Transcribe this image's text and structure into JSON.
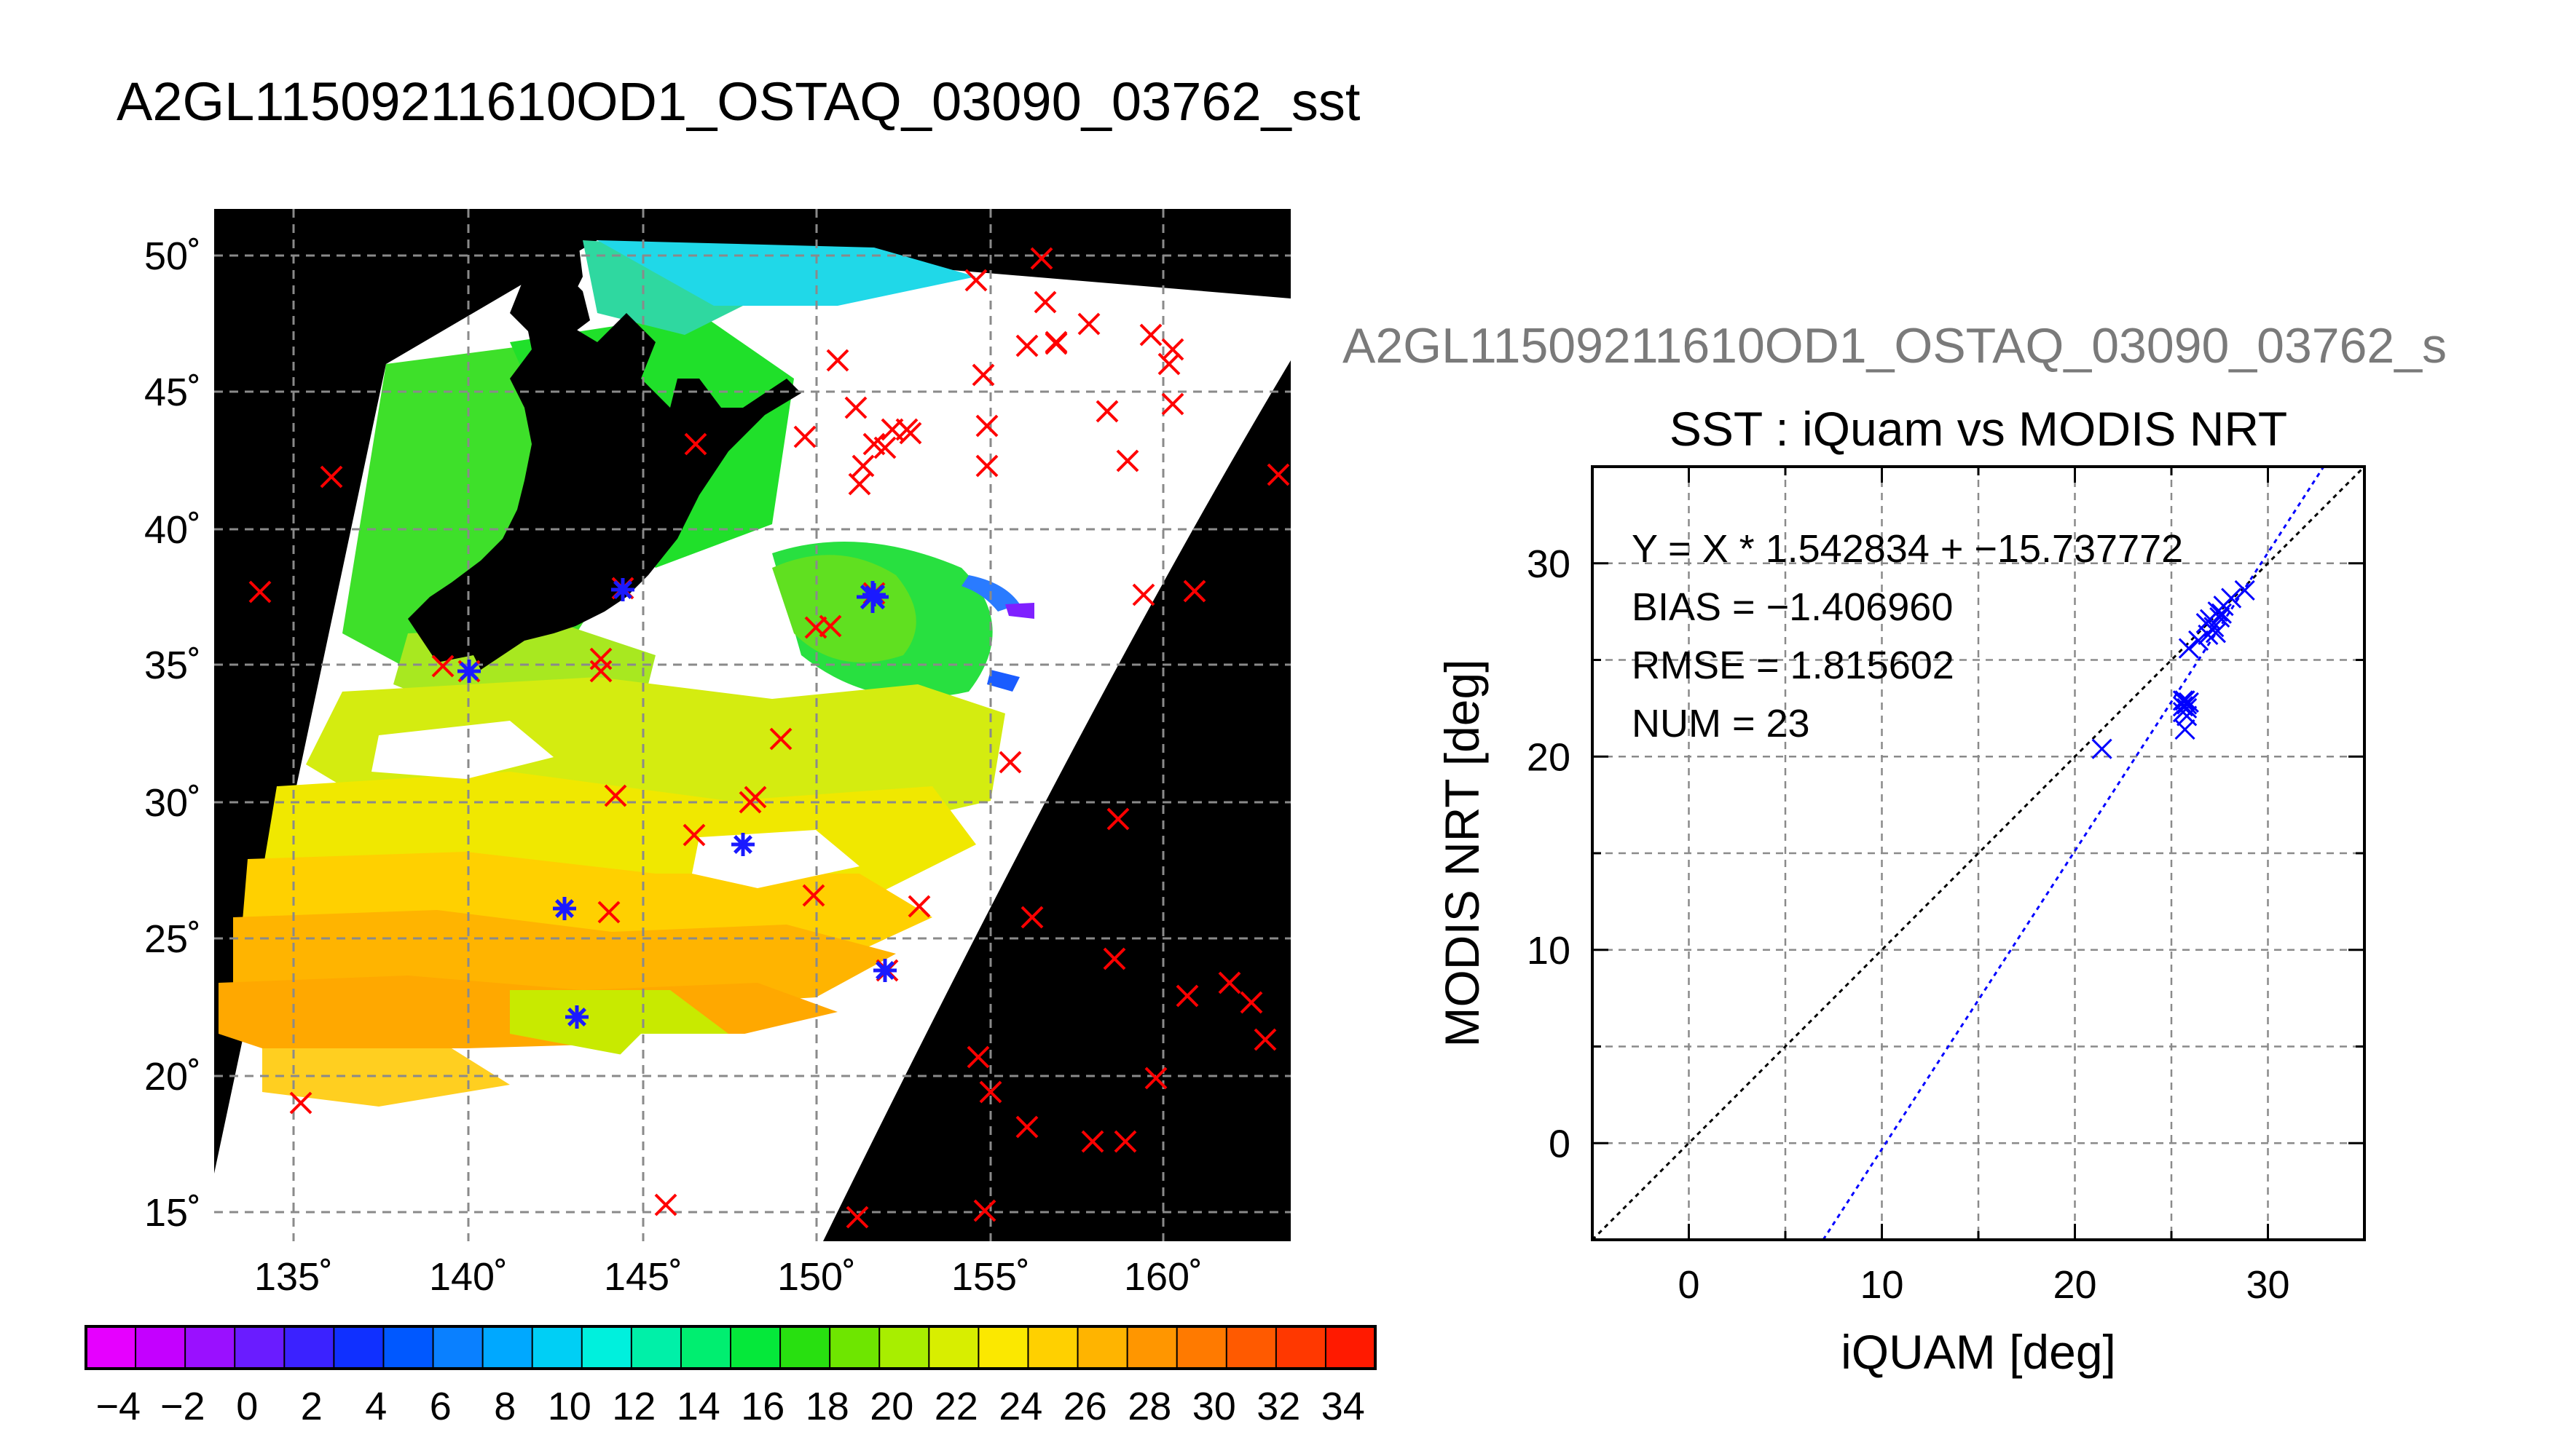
{
  "figure": {
    "title": "A2GL11509211610OD1_OSTAQ_03090_03762_sst",
    "secondary_title": "A2GL11509211610OD1_OSTAQ_03090_03762_s"
  },
  "map": {
    "lat_labels": [
      "50˚",
      "45˚",
      "40˚",
      "35˚",
      "30˚",
      "25˚",
      "20˚",
      "15˚"
    ],
    "lon_labels": [
      "135˚",
      "140˚",
      "145˚",
      "150˚",
      "155˚",
      "160˚"
    ],
    "colorbar": {
      "tick_labels": [
        "−4",
        "−2",
        "0",
        "2",
        "4",
        "6",
        "8",
        "10",
        "12",
        "14",
        "16",
        "18",
        "20",
        "22",
        "24",
        "26",
        "28",
        "30",
        "32",
        "34"
      ],
      "colors": [
        "#e600ff",
        "#c400ff",
        "#9a10ff",
        "#6a1cff",
        "#3b22ff",
        "#1030ff",
        "#0058ff",
        "#0a80ff",
        "#00a8ff",
        "#00cff5",
        "#00f0dd",
        "#00f0a8",
        "#00ee70",
        "#05e83a",
        "#28e010",
        "#6ee600",
        "#a8ee00",
        "#d8ee00",
        "#fbe800",
        "#ffd000",
        "#ffb400",
        "#ff9600",
        "#ff7a00",
        "#ff5a00",
        "#ff3800",
        "#ff1a00"
      ]
    }
  },
  "chart_data": {
    "type": "scatter",
    "title": "SST : iQuam vs MODIS NRT",
    "xlabel": "iQUAM [deg]",
    "ylabel": "MODIS NRT [deg]",
    "xlim": [
      -5,
      35
    ],
    "ylim": [
      -5,
      35
    ],
    "x_ticks": [
      "0",
      "10",
      "20",
      "30"
    ],
    "y_ticks": [
      "0",
      "10",
      "20",
      "30"
    ],
    "grid": true,
    "annotations": {
      "equation": "Y = X * 1.542834 + −15.737772",
      "bias": "BIAS = −1.406960",
      "rmse": "RMSE = 1.815602",
      "num": "NUM = 23"
    },
    "regression": {
      "slope": 1.542834,
      "intercept": -15.737772
    },
    "points": [
      [
        21.4,
        20.4
      ],
      [
        25.6,
        22.6
      ],
      [
        25.7,
        22.9
      ],
      [
        25.9,
        22.8
      ],
      [
        25.6,
        22.3
      ],
      [
        25.8,
        22.1
      ],
      [
        25.7,
        21.4
      ],
      [
        25.9,
        25.6
      ],
      [
        26.8,
        26.9
      ],
      [
        27.0,
        27.1
      ],
      [
        27.3,
        26.4
      ],
      [
        27.4,
        27.5
      ],
      [
        27.7,
        27.8
      ],
      [
        28.8,
        28.6
      ],
      [
        27.2,
        26.7
      ],
      [
        25.8,
        22.7
      ],
      [
        25.6,
        22.9
      ],
      [
        26.4,
        26.0
      ],
      [
        27.5,
        27.2
      ],
      [
        25.8,
        22.5
      ],
      [
        26.9,
        26.3
      ],
      [
        27.6,
        27.4
      ],
      [
        28.1,
        28.2
      ]
    ]
  }
}
